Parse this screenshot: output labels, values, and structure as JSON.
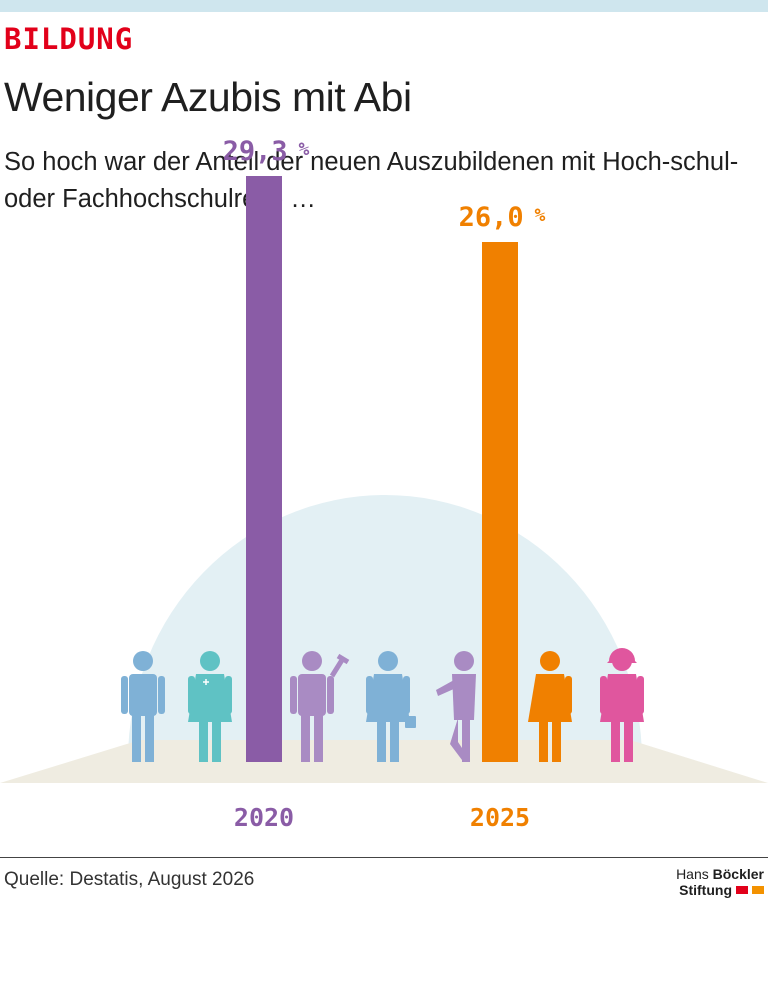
{
  "header": {
    "kicker": "BILDUNG",
    "title": "Weniger Azubis mit Abi",
    "subtitle": "So hoch war der Anteil der neuen Auszubildenen mit Hoch-schul- oder Fachhochschulreife …"
  },
  "footer": {
    "source": "Quelle: Destatis, August 2026",
    "logo_line1_a": "Hans ",
    "logo_line1_b": "Böckler",
    "logo_line2": "Stiftung"
  },
  "colors": {
    "kicker": "#e2001a",
    "topbar": "#cfe6ee",
    "dome": "#e3f0f4",
    "floor": "#efece1",
    "logo_red": "#e2001a",
    "logo_orange": "#f39200"
  },
  "chart_data": {
    "type": "bar",
    "categories": [
      "2020",
      "2025"
    ],
    "values": [
      29.3,
      26.0
    ],
    "value_labels": [
      "29,3",
      "26,0"
    ],
    "unit": "%",
    "colors": [
      "#8a5ca6",
      "#f08000"
    ],
    "ylim": [
      0,
      30
    ],
    "grid": false,
    "legend": "none",
    "title": "",
    "xlabel": "",
    "ylabel": "",
    "figures": [
      {
        "name": "man-figure",
        "color": "#7fb1d6"
      },
      {
        "name": "nurse-figure",
        "color": "#5fc2c4"
      },
      {
        "name": "mechanic-figure",
        "color": "#a98bc3"
      },
      {
        "name": "businesswoman-figure",
        "color": "#7fb1d6"
      },
      {
        "name": "leaning-man-figure",
        "color": "#a98bc3"
      },
      {
        "name": "woman-figure",
        "color": "#f08000"
      },
      {
        "name": "construction-worker-figure",
        "color": "#e0569e"
      }
    ]
  }
}
